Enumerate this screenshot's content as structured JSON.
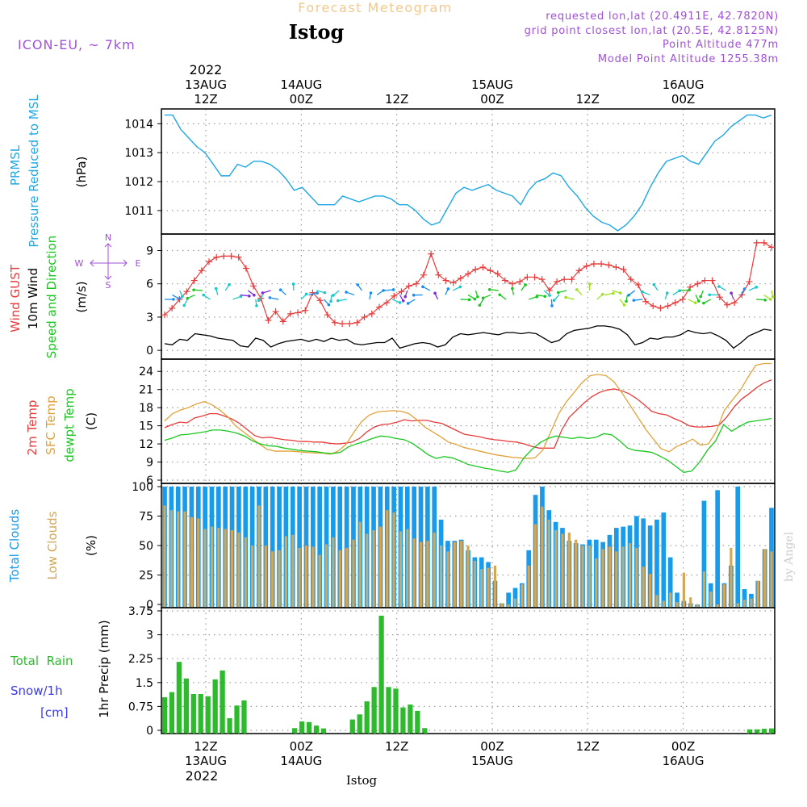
{
  "header": {
    "supertitle": "Forecast Meteogram",
    "location": "Istog",
    "model": "ICON-EU, ~ 7km",
    "requested": "requested lon,lat (20.4911E, 42.7820N)",
    "gridpoint": "grid point closest lon,lat (20.5E, 42.8125N)",
    "point_altitude": "Point Altitude 477m",
    "model_altitude": "Model Point Altitude 1255.38m",
    "footer_location": "Istog",
    "watermark": "by Angel"
  },
  "colors": {
    "pressure": "#1ea7e6",
    "gust": "#e83a3a",
    "wind10m": "#000000",
    "temp2m": "#e83a3a",
    "sfc": "#e2a23a",
    "dewpt": "#19c81e",
    "total_clouds": "#1a9bea",
    "low_clouds": "#d2a757",
    "rain": "#2dbb2d",
    "snow": "#3a3ae8",
    "purple": "#a050d8"
  },
  "top_axis": {
    "year": "2022",
    "ticks": [
      {
        "h": 12,
        "top": "13AUG",
        "bottom": "12Z"
      },
      {
        "h": 24,
        "top": "14AUG",
        "bottom": "00Z"
      },
      {
        "h": 36,
        "top": "",
        "bottom": "12Z"
      },
      {
        "h": 48,
        "top": "15AUG",
        "bottom": "00Z"
      },
      {
        "h": 60,
        "top": "",
        "bottom": "12Z"
      },
      {
        "h": 72,
        "top": "16AUG",
        "bottom": "00Z"
      }
    ]
  },
  "bottom_axis": {
    "year": "2022",
    "ticks": [
      {
        "h": 12,
        "top": "12Z",
        "bottom": "13AUG"
      },
      {
        "h": 24,
        "top": "00Z",
        "bottom": "14AUG"
      },
      {
        "h": 36,
        "top": "12Z",
        "bottom": ""
      },
      {
        "h": 48,
        "top": "00Z",
        "bottom": "15AUG"
      },
      {
        "h": 60,
        "top": "12Z",
        "bottom": ""
      },
      {
        "h": 72,
        "top": "00Z",
        "bottom": "16AUG"
      }
    ]
  },
  "panel_labels": {
    "pressure": {
      "a": "PRMSL",
      "b": "Pressure Reduced to MSL",
      "unit": "(hPa)"
    },
    "wind": {
      "a": "Wind GUST",
      "b": "10m Wind",
      "c": "Speed and Direction",
      "unit": "(m/s)",
      "compass_n": "N",
      "compass_s": "S",
      "compass_w": "W",
      "compass_e": "E"
    },
    "temp": {
      "a": "2m Temp",
      "b": "SFC Temp",
      "c": "dewpt Temp",
      "unit": "(C)"
    },
    "clouds": {
      "a": "Total Clouds",
      "b": "Low Clouds",
      "unit": "(%)"
    },
    "precip": {
      "a": "Total  Rain",
      "b": "Snow/1h",
      "c": "[cm]",
      "ylabel": "1hr Precip (mm)"
    }
  },
  "chart_data": [
    {
      "type": "line",
      "name": "pressure",
      "ylim": [
        1010.3,
        1014.4
      ],
      "yticks": [
        "1011",
        "1012",
        "1013",
        "1014"
      ],
      "yticks_values": [
        1011,
        1012,
        1013,
        1014
      ],
      "series": [
        {
          "name": "PRMSL",
          "x_start_hour": 0,
          "x_step": 1,
          "values": [
            1014.3,
            1014.3,
            1013.8,
            1013.5,
            1013.2,
            1013.0,
            1012.6,
            1012.2,
            1012.2,
            1012.6,
            1012.5,
            1012.7,
            1012.7,
            1012.6,
            1012.4,
            1012.1,
            1011.7,
            1011.8,
            1011.5,
            1011.2,
            1011.2,
            1011.2,
            1011.5,
            1011.4,
            1011.3,
            1011.4,
            1011.5,
            1011.5,
            1011.4,
            1011.2,
            1011.2,
            1011.0,
            1010.7,
            1010.5,
            1010.6,
            1011.1,
            1011.6,
            1011.8,
            1011.7,
            1011.8,
            1011.9,
            1011.7,
            1011.6,
            1011.5,
            1011.2,
            1011.7,
            1012.0,
            1012.1,
            1012.3,
            1012.2,
            1011.8,
            1011.5,
            1011.1,
            1010.8,
            1010.6,
            1010.5,
            1010.3,
            1010.5,
            1010.8,
            1011.2,
            1011.8,
            1012.3,
            1012.7,
            1012.8,
            1012.9,
            1012.7,
            1012.6,
            1013.0,
            1013.4,
            1013.6,
            1013.9,
            1014.1,
            1014.3,
            1014.3,
            1014.2,
            1014.3
          ]
        }
      ]
    },
    {
      "type": "line",
      "name": "wind",
      "ylim": [
        -0.5,
        10.2
      ],
      "yticks": [
        "0",
        "3",
        "6",
        "9"
      ],
      "yticks_values": [
        0,
        3,
        6,
        9
      ],
      "series": [
        {
          "name": "Wind GUST",
          "values": [
            3.2,
            3.8,
            4.6,
            5.3,
            6.3,
            7.2,
            8.0,
            8.4,
            8.5,
            8.5,
            8.4,
            7.4,
            5.8,
            4.7,
            2.7,
            3.5,
            2.6,
            3.3,
            3.4,
            3.6,
            5.2,
            4.5,
            3.2,
            2.5,
            2.4,
            2.4,
            2.5,
            3.0,
            3.3,
            3.9,
            4.3,
            4.9,
            5.3,
            5.8,
            6.0,
            6.8,
            8.7,
            6.8,
            6.3,
            6.1,
            6.5,
            6.9,
            7.3,
            7.5,
            7.2,
            6.9,
            6.3,
            6.0,
            6.2,
            6.6,
            6.6,
            6.4,
            5.4,
            6.2,
            6.4,
            6.4,
            7.2,
            7.6,
            7.8,
            7.8,
            7.7,
            7.5,
            7.3,
            6.4,
            5.9,
            4.4,
            4.0,
            3.8,
            4.0,
            4.3,
            4.6,
            5.7,
            6.0,
            6.3,
            6.3,
            4.8,
            4.1,
            4.3,
            5.0,
            6.2,
            9.7,
            9.7,
            9.3
          ]
        },
        {
          "name": "10m Wind",
          "values": [
            0.6,
            0.5,
            1.0,
            0.9,
            1.5,
            1.4,
            1.3,
            1.1,
            1.0,
            0.9,
            0.4,
            0.3,
            1.1,
            0.9,
            0.3,
            0.6,
            0.8,
            0.9,
            1.0,
            0.8,
            1.0,
            0.8,
            1.1,
            0.9,
            1.0,
            0.6,
            0.5,
            0.6,
            0.7,
            0.7,
            1.1,
            0.2,
            0.4,
            0.6,
            0.7,
            0.6,
            0.3,
            0.5,
            1.2,
            1.5,
            1.4,
            1.5,
            1.6,
            1.5,
            1.4,
            1.6,
            1.6,
            1.5,
            1.6,
            1.5,
            1.1,
            0.7,
            0.9,
            1.5,
            1.8,
            1.9,
            2.0,
            2.2,
            2.2,
            2.1,
            1.9,
            1.4,
            0.5,
            0.7,
            1.1,
            1.0,
            1.2,
            1.2,
            1.4,
            1.8,
            1.6,
            1.5,
            1.6,
            1.3,
            0.9,
            0.2,
            0.7,
            1.3,
            1.6,
            1.9,
            1.8
          ]
        }
      ],
      "wind_barbs": {
        "note": "10m wind direction arrows",
        "colors_by_speed": [
          "#7a2fd8",
          "#1a8ef0",
          "#19c8c8",
          "#19c81e",
          "#a0e01e",
          "#e8e81e"
        ]
      }
    },
    {
      "type": "line",
      "name": "temperature",
      "ylim": [
        6,
        25.5
      ],
      "yticks": [
        "6",
        "9",
        "12",
        "15",
        "18",
        "21",
        "24"
      ],
      "yticks_values": [
        6,
        9,
        12,
        15,
        18,
        21,
        24
      ],
      "series": [
        {
          "name": "2m Temp",
          "values": [
            14.7,
            15.2,
            15.6,
            15.5,
            16.3,
            16.6,
            17.0,
            17.0,
            16.6,
            16.1,
            15.4,
            14.4,
            13.4,
            13.0,
            13.1,
            12.9,
            12.7,
            12.6,
            12.4,
            12.4,
            12.3,
            12.3,
            12.1,
            12.0,
            12.1,
            12.3,
            12.9,
            14.0,
            14.8,
            15.2,
            15.3,
            15.6,
            16.0,
            15.8,
            15.9,
            15.9,
            15.6,
            15.4,
            14.8,
            14.2,
            13.6,
            13.4,
            13.2,
            12.9,
            12.7,
            12.6,
            12.4,
            12.3,
            12.0,
            11.6,
            11.3,
            11.3,
            11.3,
            14.3,
            16.4,
            17.6,
            18.8,
            19.8,
            20.5,
            20.9,
            21.1,
            20.8,
            20.3,
            19.5,
            18.5,
            17.4,
            17.0,
            16.8,
            16.2,
            15.7,
            15.0,
            14.8,
            14.8,
            14.9,
            15.1,
            16.4,
            18.1,
            19.4,
            20.3,
            21.3,
            22.1,
            22.6
          ]
        },
        {
          "name": "SFC Temp",
          "values": [
            15.8,
            17.0,
            17.6,
            18.0,
            18.6,
            19.0,
            18.5,
            17.6,
            16.5,
            15.0,
            14.0,
            13.0,
            12.0,
            11.1,
            10.8,
            10.8,
            10.8,
            10.7,
            10.6,
            10.5,
            10.5,
            10.3,
            10.8,
            11.9,
            13.9,
            15.7,
            16.8,
            17.3,
            17.4,
            17.5,
            17.4,
            17.0,
            16.0,
            14.8,
            14.0,
            13.2,
            12.3,
            11.9,
            11.4,
            11.1,
            10.8,
            10.5,
            10.2,
            10.0,
            9.8,
            9.7,
            9.6,
            9.7,
            11.0,
            14.0,
            17.0,
            19.0,
            20.6,
            22.2,
            23.3,
            23.5,
            23.3,
            22.3,
            20.5,
            18.5,
            16.5,
            14.5,
            12.8,
            11.2,
            10.7,
            11.6,
            12.1,
            12.8,
            11.8,
            12.0,
            14.1,
            17.5,
            19.2,
            20.8,
            23.0,
            25.0,
            25.3,
            25.3
          ]
        },
        {
          "name": "dewpt Temp",
          "values": [
            12.6,
            13.0,
            13.5,
            13.6,
            13.8,
            14.0,
            14.3,
            14.3,
            14.1,
            13.8,
            13.3,
            12.5,
            12.0,
            11.7,
            11.6,
            11.3,
            11.1,
            10.9,
            10.8,
            10.7,
            10.5,
            10.4,
            10.6,
            11.5,
            12.0,
            12.4,
            12.9,
            13.3,
            13.2,
            12.9,
            12.7,
            12.1,
            11.2,
            10.2,
            9.6,
            9.9,
            9.7,
            9.2,
            8.6,
            8.3,
            8.0,
            7.8,
            7.5,
            7.3,
            7.7,
            9.7,
            11.1,
            12.2,
            12.9,
            13.3,
            13.1,
            12.9,
            13.1,
            12.9,
            13.1,
            13.7,
            13.5,
            12.5,
            11.3,
            10.9,
            10.8,
            10.6,
            10.0,
            9.3,
            8.3,
            7.3,
            7.5,
            9.0,
            11.0,
            12.5,
            15.2,
            14.1,
            14.9,
            15.6,
            15.8,
            16.0,
            16.2
          ]
        }
      ]
    },
    {
      "type": "bar",
      "name": "clouds",
      "ylim": [
        0,
        100
      ],
      "yticks": [
        "0",
        "25",
        "50",
        "75",
        "100"
      ],
      "yticks_values": [
        0,
        25,
        50,
        75,
        100
      ],
      "series": [
        {
          "name": "Total Clouds",
          "values": [
            100,
            100,
            100,
            100,
            100,
            100,
            100,
            100,
            100,
            100,
            100,
            100,
            100,
            100,
            100,
            100,
            100,
            100,
            100,
            100,
            100,
            100,
            100,
            100,
            100,
            100,
            100,
            100,
            100,
            100,
            100,
            100,
            100,
            100,
            100,
            100,
            100,
            100,
            100,
            100,
            100,
            72,
            54,
            54,
            55,
            46,
            40,
            40,
            36,
            20,
            1,
            10,
            14,
            18,
            46,
            93,
            100,
            80,
            70,
            65,
            54,
            52,
            51,
            55,
            55,
            53,
            59,
            65,
            66,
            67,
            75,
            73,
            67,
            72,
            78,
            40,
            10,
            3,
            1,
            0,
            88,
            18,
            97,
            18,
            33,
            100,
            13,
            9,
            20,
            47,
            82
          ]
        },
        {
          "name": "Low Clouds",
          "values": [
            84,
            80,
            79,
            79,
            74,
            73,
            64,
            66,
            65,
            64,
            63,
            61,
            57,
            50,
            84,
            50,
            45,
            46,
            58,
            59,
            48,
            50,
            49,
            42,
            51,
            57,
            46,
            48,
            55,
            70,
            60,
            63,
            66,
            80,
            78,
            62,
            64,
            56,
            53,
            54,
            61,
            50,
            45,
            53,
            54,
            50,
            37,
            30,
            31,
            33,
            1,
            0,
            5,
            17,
            33,
            68,
            83,
            72,
            63,
            60,
            61,
            55,
            50,
            50,
            39,
            47,
            49,
            45,
            49,
            52,
            48,
            32,
            26,
            8,
            3,
            10,
            2,
            27,
            6,
            0,
            28,
            11,
            0,
            17,
            48,
            1,
            4,
            5,
            20,
            47,
            45
          ]
        }
      ]
    },
    {
      "type": "bar",
      "name": "precip",
      "ylim": [
        0,
        3.75
      ],
      "yticks": [
        "0",
        "0.75",
        "1.5",
        "2.25",
        "3",
        "3.75"
      ],
      "yticks_values": [
        0,
        0.75,
        1.5,
        2.25,
        3,
        3.75
      ],
      "series": [
        {
          "name": "Total Rain",
          "values": [
            1.04,
            1.2,
            2.15,
            1.63,
            1.14,
            1.14,
            1.07,
            1.6,
            1.88,
            0.38,
            0.78,
            0.94,
            0,
            0,
            0,
            0,
            0,
            0,
            0.07,
            0.28,
            0.26,
            0.15,
            0.06,
            0,
            0,
            0,
            0.34,
            0.5,
            0.91,
            1.36,
            3.6,
            1.36,
            1.31,
            0.72,
            0.81,
            0.61,
            0.07,
            0,
            0,
            0,
            0,
            0,
            0,
            0,
            0,
            0,
            0,
            0,
            0,
            0,
            0,
            0,
            0,
            0,
            0,
            0,
            0,
            0,
            0,
            0,
            0,
            0,
            0,
            0,
            0,
            0,
            0,
            0,
            0,
            0,
            0,
            0,
            0,
            0,
            0,
            0,
            0,
            0,
            0,
            0,
            0,
            0.03,
            0.03,
            0.05,
            0.06
          ]
        }
      ]
    }
  ]
}
